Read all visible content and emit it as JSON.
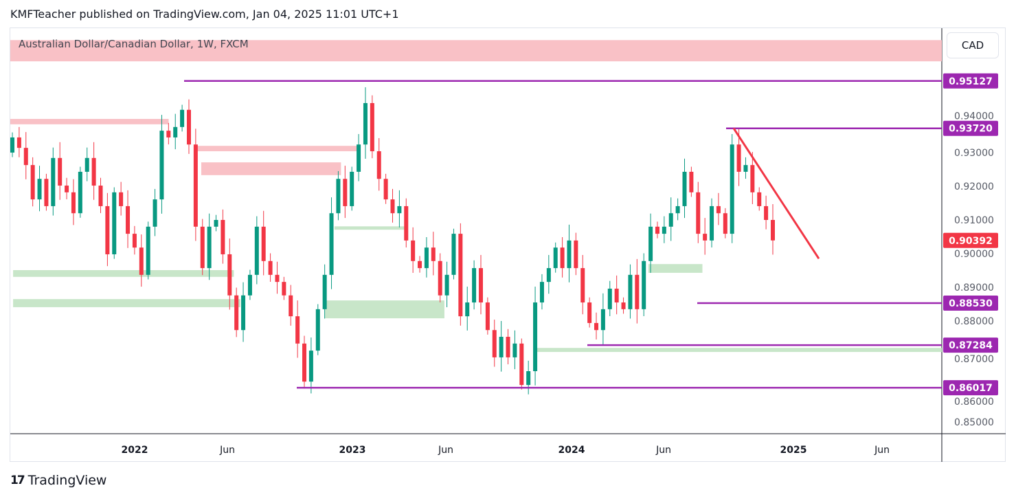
{
  "header": {
    "publisher": "KMFTeacher published on TradingView.com, Jan 04, 2025 11:01 UTC+1"
  },
  "symbol_label": "Australian Dollar/Canadian Dollar, 1W, FXCM",
  "currency_button": "CAD",
  "footer": {
    "logo_text": "TradingView"
  },
  "colors": {
    "up": "#089981",
    "down": "#f23645",
    "level": "#9c27b0",
    "supply": "#f9c1c6",
    "demand": "#c8e6c9",
    "trend": "#f23645"
  },
  "chart_data": {
    "type": "candlestick",
    "title": "Australian Dollar/Canadian Dollar, 1W, FXCM",
    "ylim": [
      0.843,
      0.962
    ],
    "y_ticks": [
      "0.85000",
      "0.86000",
      "0.87000",
      "0.88000",
      "0.89000",
      "0.90000",
      "0.91000",
      "0.92000",
      "0.93000",
      "0.94000"
    ],
    "x_ticks": [
      "2022",
      "Jun",
      "2023",
      "Jun",
      "2024",
      "Jun",
      "2025",
      "Jun"
    ],
    "first_open": 0.93,
    "closes": [
      0.9345,
      0.9314,
      0.9263,
      0.9161,
      0.9222,
      0.9141,
      0.9284,
      0.9202,
      0.9182,
      0.912,
      0.9243,
      0.9284,
      0.9202,
      0.9141,
      0.8998,
      0.9182,
      0.9141,
      0.9059,
      0.9018,
      0.8937,
      0.908,
      0.9161,
      0.9365,
      0.9345,
      0.9376,
      0.9427,
      0.9324,
      0.908,
      0.8957,
      0.908,
      0.91,
      0.8998,
      0.8876,
      0.8773,
      0.8876,
      0.8937,
      0.908,
      0.8978,
      0.8937,
      0.8916,
      0.8876,
      0.8814,
      0.8733,
      0.862,
      0.8712,
      0.8835,
      0.8937,
      0.912,
      0.9222,
      0.9141,
      0.9243,
      0.9324,
      0.9447,
      0.9304,
      0.9222,
      0.9161,
      0.912,
      0.9141,
      0.9039,
      0.8978,
      0.8957,
      0.9018,
      0.8978,
      0.8876,
      0.8937,
      0.9059,
      0.8814,
      0.8855,
      0.8957,
      0.8855,
      0.8773,
      0.8692,
      0.8753,
      0.8692,
      0.8733,
      0.861,
      0.8651,
      0.8855,
      0.8916,
      0.8957,
      0.9018,
      0.8957,
      0.9039,
      0.8957,
      0.8855,
      0.8794,
      0.8773,
      0.8835,
      0.8896,
      0.8855,
      0.8835,
      0.8937,
      0.8835,
      0.8978,
      0.908,
      0.9059,
      0.908,
      0.912,
      0.9141,
      0.9243,
      0.9182,
      0.9059,
      0.9039,
      0.9141,
      0.912,
      0.9059,
      0.9324,
      0.9243,
      0.9263,
      0.9182,
      0.9141,
      0.91,
      0.90392
    ],
    "levels": [
      {
        "label": "0.95127",
        "price": 0.95127,
        "from": "2022-04"
      },
      {
        "label": "0.93720",
        "price": 0.9372,
        "from": "2024-09"
      },
      {
        "label": "0.88530",
        "price": 0.8853,
        "from": "2024-08"
      },
      {
        "label": "0.87284",
        "price": 0.87284,
        "from": "2024-02"
      },
      {
        "label": "0.86017",
        "price": 0.86017,
        "from": "2022-10"
      }
    ],
    "last_price": {
      "label": "0.90392",
      "price": 0.90392
    },
    "zones": [
      {
        "kind": "supply",
        "top": 0.9634,
        "bottom": 0.9571,
        "x0": 0,
        "x1": 1
      },
      {
        "kind": "supply",
        "top": 0.94,
        "bottom": 0.9384,
        "x0": 0,
        "x1": 0.17
      },
      {
        "kind": "supply",
        "top": 0.932,
        "bottom": 0.9304,
        "x0": 0.2,
        "x1": 0.375
      },
      {
        "kind": "supply",
        "top": 0.9271,
        "bottom": 0.9233,
        "x0": 0.205,
        "x1": 0.355
      },
      {
        "kind": "demand",
        "top": 0.8951,
        "bottom": 0.8931,
        "x0": 0.003,
        "x1": 0.24
      },
      {
        "kind": "demand",
        "top": 0.8865,
        "bottom": 0.8841,
        "x0": 0.003,
        "x1": 0.247
      },
      {
        "kind": "demand",
        "top": 0.8861,
        "bottom": 0.8808,
        "x0": 0.338,
        "x1": 0.466
      },
      {
        "kind": "demand",
        "top": 0.9081,
        "bottom": 0.9071,
        "x0": 0.348,
        "x1": 0.425
      },
      {
        "kind": "demand",
        "top": 0.872,
        "bottom": 0.8708,
        "x0": 0.565,
        "x1": 1
      },
      {
        "kind": "demand",
        "top": 0.8969,
        "bottom": 0.8943,
        "x0": 0.685,
        "x1": 0.743
      }
    ],
    "trendline": {
      "from": [
        0.9372,
        "2024-09"
      ],
      "to": [
        0.8985,
        "2025-02"
      ]
    }
  }
}
